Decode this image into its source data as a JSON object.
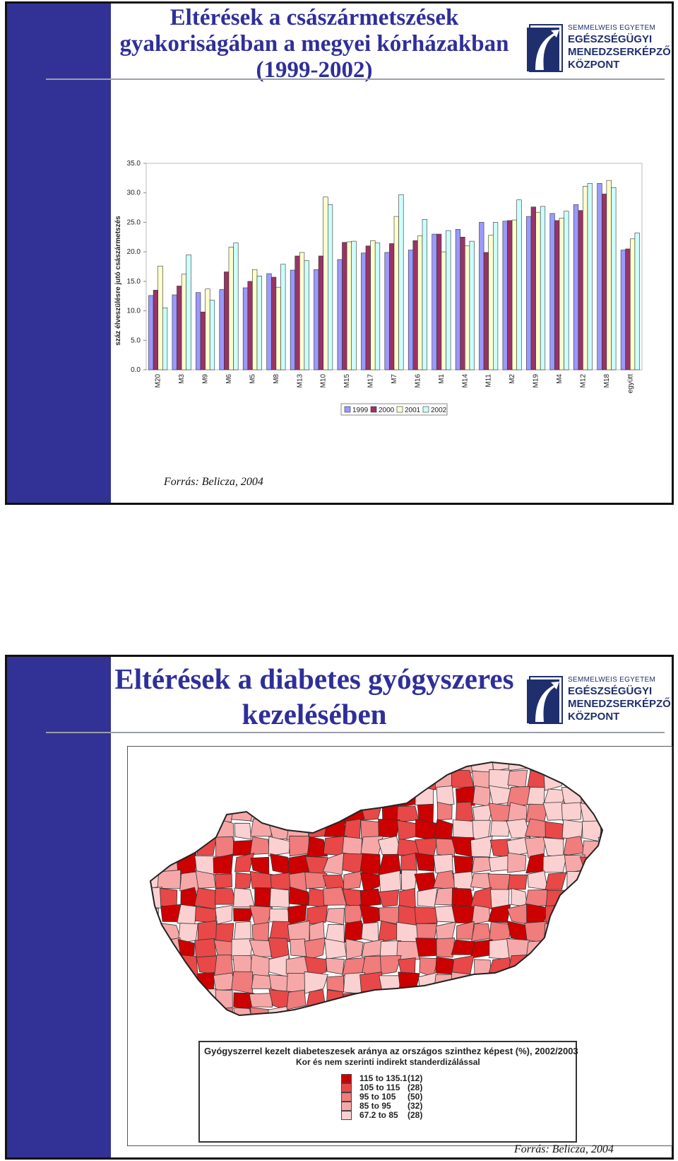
{
  "slide1": {
    "title": "Eltérések a császármetszések gyakoriságában a megyei kórházakban (1999-2002)",
    "logo": {
      "line1": "SEMMELWEIS EGYETEM",
      "line2": "EGÉSZSÉGÜGYI",
      "line3": "MENEDZSERKÉPZŐ",
      "line4": "KÖZPONT"
    },
    "source": "Forrás: Belicza, 2004"
  },
  "chart_data": {
    "type": "bar",
    "title": "",
    "xlabel": "",
    "ylabel": "száz élveszülésre jutó császármetszés",
    "ylim": [
      0,
      35
    ],
    "yticks": [
      "0.0",
      "5.0",
      "10.0",
      "15.0",
      "20.0",
      "25.0",
      "30.0",
      "35.0"
    ],
    "grid": false,
    "legend_position": "bottom",
    "categories": [
      "M20",
      "M3",
      "M9",
      "M6",
      "M5",
      "M8",
      "M13",
      "M10",
      "M15",
      "M17",
      "M7",
      "M16",
      "M1",
      "M14",
      "M11",
      "M2",
      "M19",
      "M4",
      "M12",
      "M18",
      "együtt"
    ],
    "series": [
      {
        "name": "1999",
        "color": "#9999ff",
        "values": [
          12.6,
          12.7,
          13.1,
          13.6,
          13.9,
          16.3,
          16.9,
          17.0,
          18.7,
          19.8,
          19.9,
          20.3,
          23.0,
          23.8,
          25.0,
          25.2,
          26.0,
          26.5,
          28.0,
          31.6,
          20.3
        ]
      },
      {
        "name": "2000",
        "color": "#993366",
        "values": [
          13.5,
          14.2,
          9.8,
          16.6,
          15.0,
          15.7,
          19.3,
          19.3,
          21.6,
          21.0,
          21.4,
          21.9,
          23.0,
          22.5,
          19.9,
          25.3,
          27.6,
          25.3,
          27.0,
          29.8,
          20.5
        ]
      },
      {
        "name": "2001",
        "color": "#ffffcc",
        "values": [
          17.6,
          16.2,
          13.7,
          20.8,
          17.0,
          14.0,
          19.9,
          29.3,
          21.7,
          21.9,
          26.0,
          22.7,
          20.0,
          21.0,
          22.8,
          25.4,
          26.7,
          25.7,
          31.1,
          32.1,
          22.2
        ]
      },
      {
        "name": "2002",
        "color": "#ccffff",
        "values": [
          10.5,
          19.5,
          11.8,
          21.5,
          15.9,
          17.9,
          18.5,
          28.0,
          21.8,
          21.5,
          29.7,
          25.5,
          23.6,
          21.8,
          25.0,
          28.8,
          27.7,
          26.9,
          31.6,
          30.9,
          23.2
        ]
      }
    ]
  },
  "slide2": {
    "title": "Eltérések a diabetes gyógyszeres kezelésében",
    "logo": {
      "line1": "SEMMELWEIS EGYETEM",
      "line2": "EGÉSZSÉGÜGYI",
      "line3": "MENEDZSERKÉPZŐ",
      "line4": "KÖZPONT"
    },
    "map_legend": {
      "title": "Gyógyszerrel kezelt diabeteszesek aránya az országos szinthez képest (%), 2002/2003",
      "subtitle": "Kor és nem szerinti indirekt standerdizálással",
      "rows": [
        {
          "range": "115   to 135.1",
          "count": "(12)",
          "color": "#cc0000"
        },
        {
          "range": "105   to 115",
          "count": "(28)",
          "color": "#e84848"
        },
        {
          "range": "95     to 105",
          "count": "(50)",
          "color": "#f07c7c"
        },
        {
          "range": "85     to 95",
          "count": "(32)",
          "color": "#f6a8a8"
        },
        {
          "range": "67.2 to 85",
          "count": "(28)",
          "color": "#fbd0d0"
        }
      ]
    },
    "source": "Forrás: Belicza, 2004"
  }
}
